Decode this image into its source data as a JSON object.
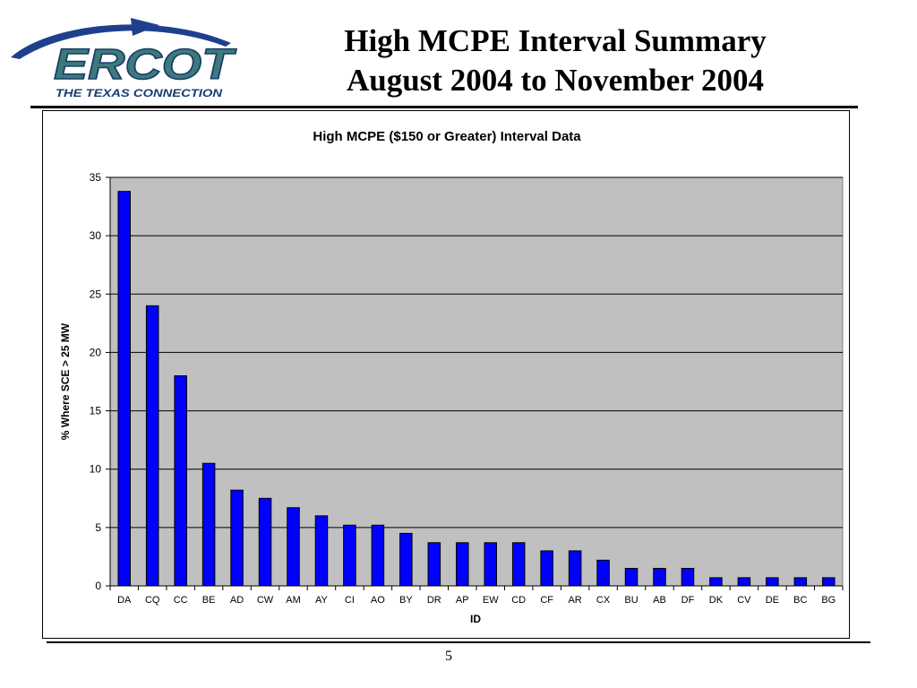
{
  "logo": {
    "text": "ERCOT",
    "tagline": "THE TEXAS CONNECTION",
    "colors": {
      "arc": "#1e3f8c",
      "letters": "#3e7a78",
      "letters_outline": "#173c70"
    }
  },
  "slide": {
    "title_line1": "High MCPE Interval Summary",
    "title_line2": "August 2004 to November 2004",
    "page_number": "5"
  },
  "chart_data": {
    "type": "bar",
    "title": "High MCPE ($150 or Greater) Interval Data",
    "xlabel": "ID",
    "ylabel": "% Where SCE > 25 MW",
    "ylim": [
      0,
      35
    ],
    "yticks": [
      0,
      5,
      10,
      15,
      20,
      25,
      30,
      35
    ],
    "grid": true,
    "legend": "none",
    "categories": [
      "DA",
      "CQ",
      "CC",
      "BE",
      "AD",
      "CW",
      "AM",
      "AY",
      "CI",
      "AO",
      "BY",
      "DR",
      "AP",
      "EW",
      "CD",
      "CF",
      "AR",
      "CX",
      "BU",
      "AB",
      "DF",
      "DK",
      "CV",
      "DE",
      "BC",
      "BG"
    ],
    "values": [
      33.8,
      24.0,
      18.0,
      10.5,
      8.2,
      7.5,
      6.7,
      6.0,
      5.2,
      5.2,
      4.5,
      3.7,
      3.7,
      3.7,
      3.7,
      3.0,
      3.0,
      2.2,
      1.5,
      1.5,
      1.5,
      0.7,
      0.7,
      0.7,
      0.7,
      0.7
    ],
    "colors": {
      "bar": "#0000ff",
      "bar_outline": "#000000",
      "plot_bg": "#c0c0c0",
      "grid": "#000000"
    }
  }
}
